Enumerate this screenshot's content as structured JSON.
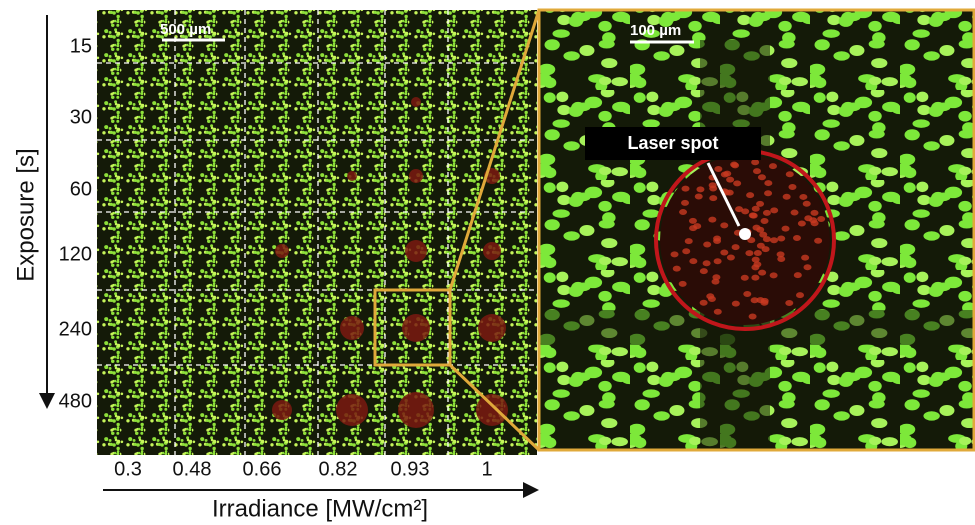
{
  "figure": {
    "y_axis_label": "Exposure [s]",
    "y_labels": [
      15,
      30,
      60,
      120,
      240,
      480
    ],
    "x_axis_label": "Irradiance [MW/cm²]",
    "x_labels": [
      0.3,
      0.48,
      0.66,
      0.82,
      0.93,
      1
    ],
    "left_scale_bar": "500 µm",
    "right_scale_bar": "100 µm",
    "annotation": "Laser spot"
  }
}
